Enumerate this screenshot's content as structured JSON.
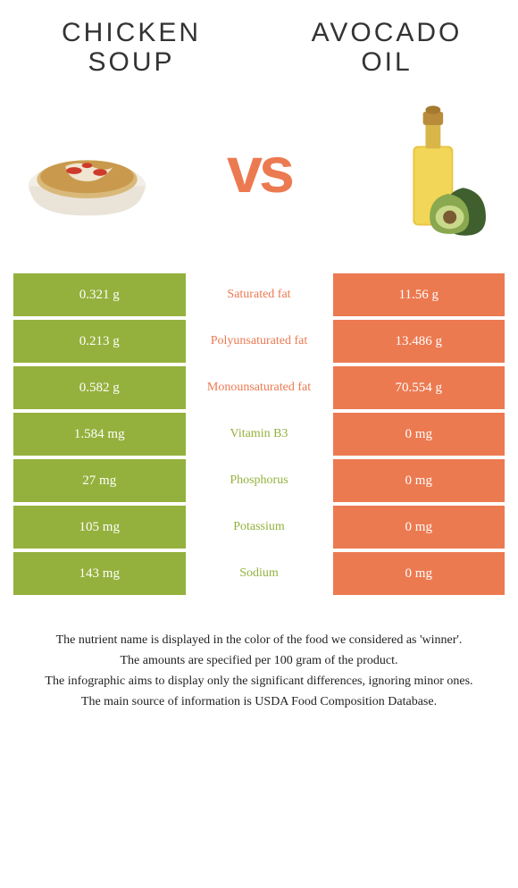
{
  "colors": {
    "left_bg": "#94b13d",
    "right_bg": "#ec7a51",
    "left_text": "#94b13d",
    "right_text": "#ec7a51",
    "vs": "#ec7a51"
  },
  "left_food": {
    "title_line1": "CHICKEN",
    "title_line2": "SOUP"
  },
  "right_food": {
    "title_line1": "AVOCADO",
    "title_line2": "OIL"
  },
  "vs_label": "vs",
  "rows": [
    {
      "left": "0.321 g",
      "label": "Saturated fat",
      "right": "11.56 g",
      "winner": "right"
    },
    {
      "left": "0.213 g",
      "label": "Polyunsaturated fat",
      "right": "13.486 g",
      "winner": "right"
    },
    {
      "left": "0.582 g",
      "label": "Monounsaturated fat",
      "right": "70.554 g",
      "winner": "right"
    },
    {
      "left": "1.584 mg",
      "label": "Vitamin B3",
      "right": "0 mg",
      "winner": "left"
    },
    {
      "left": "27 mg",
      "label": "Phosphorus",
      "right": "0 mg",
      "winner": "left"
    },
    {
      "left": "105 mg",
      "label": "Potassium",
      "right": "0 mg",
      "winner": "left"
    },
    {
      "left": "143 mg",
      "label": "Sodium",
      "right": "0 mg",
      "winner": "left"
    }
  ],
  "footer": [
    "The nutrient name is displayed in the color of the food we considered as 'winner'.",
    "The amounts are specified per 100 gram of the product.",
    "The infographic aims to display only the significant differences, ignoring minor ones.",
    "The main source of information is USDA Food Composition Database."
  ]
}
